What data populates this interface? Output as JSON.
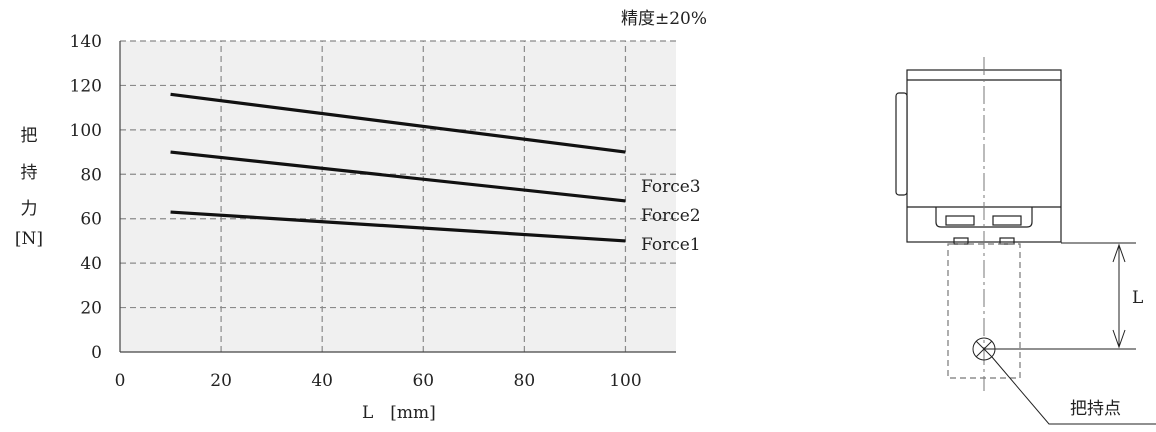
{
  "chart_data": {
    "type": "line",
    "note": "精度±20%",
    "ylabel_chars": [
      "把",
      "持",
      "力"
    ],
    "yunit": "[N]",
    "xlabel": "L　[mm]",
    "xlim": [
      0,
      110
    ],
    "ylim": [
      0,
      140
    ],
    "xticks": [
      0,
      20,
      40,
      60,
      80,
      100
    ],
    "yticks": [
      0,
      20,
      40,
      60,
      80,
      100,
      120,
      140
    ],
    "grid": true,
    "plot_background": "#f0f0f0",
    "series": [
      {
        "name": "Force3",
        "x": [
          10,
          100
        ],
        "y": [
          116,
          90
        ]
      },
      {
        "name": "Force2",
        "x": [
          10,
          100
        ],
        "y": [
          90,
          68
        ]
      },
      {
        "name": "Force1",
        "x": [
          10,
          100
        ],
        "y": [
          63,
          50
        ]
      }
    ]
  },
  "diagram": {
    "dimension_label": "L",
    "grip_point_label": "把持点"
  }
}
